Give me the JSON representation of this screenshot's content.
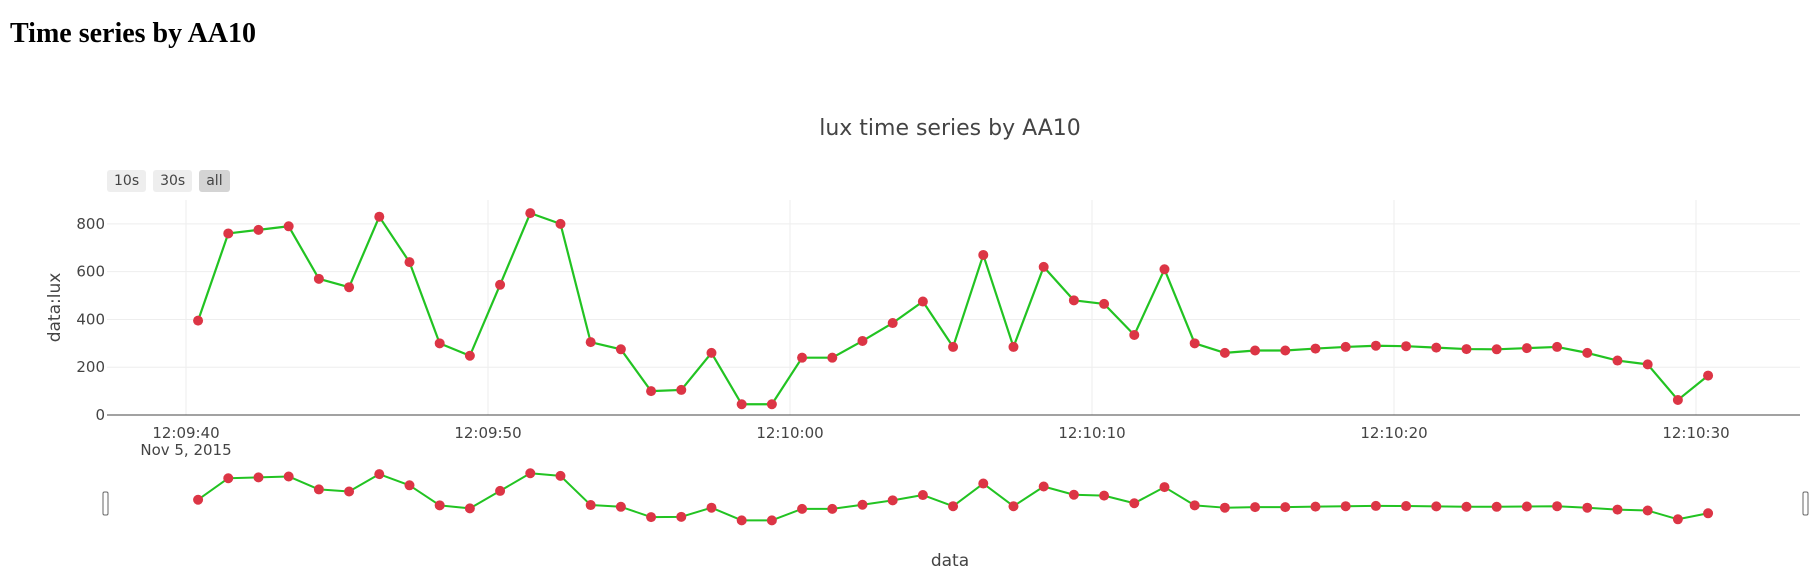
{
  "page": {
    "heading": "Time series by AA10"
  },
  "range_buttons": [
    {
      "label": "10s",
      "active": false
    },
    {
      "label": "30s",
      "active": false
    },
    {
      "label": "all",
      "active": true
    }
  ],
  "colors": {
    "line": "#22c322",
    "marker": "#dc3545",
    "grid": "#eeeeee",
    "axis": "#444444"
  },
  "chart_data": {
    "type": "line",
    "title": "lux time series by AA10",
    "xlabel": "data",
    "ylabel": "data:lux",
    "x_ticks": [
      "12:09:40",
      "12:09:50",
      "12:10:00",
      "12:10:10",
      "12:10:20",
      "12:10:30"
    ],
    "x_date_label": "Nov 5, 2015",
    "y_ticks": [
      0,
      200,
      400,
      600,
      800
    ],
    "ylim": [
      0,
      900
    ],
    "xlim": [
      "2015-11-05 12:09:40",
      "2015-11-05 12:10:33"
    ],
    "rangeslider": true,
    "grid": true,
    "series": [
      {
        "x": [
          "2015-11-05 12:09:40.4",
          "2015-11-05 12:09:41.4",
          "2015-11-05 12:09:42.4",
          "2015-11-05 12:09:43.4",
          "2015-11-05 12:09:44.4",
          "2015-11-05 12:09:45.4",
          "2015-11-05 12:09:46.4",
          "2015-11-05 12:09:47.4",
          "2015-11-05 12:09:48.4",
          "2015-11-05 12:09:49.4",
          "2015-11-05 12:09:50.4",
          "2015-11-05 12:09:51.4",
          "2015-11-05 12:09:52.4",
          "2015-11-05 12:09:53.4",
          "2015-11-05 12:09:54.4",
          "2015-11-05 12:09:55.4",
          "2015-11-05 12:09:56.4",
          "2015-11-05 12:09:57.4",
          "2015-11-05 12:09:58.4",
          "2015-11-05 12:09:59.4",
          "2015-11-05 12:10:00.4",
          "2015-11-05 12:10:01.4",
          "2015-11-05 12:10:02.4",
          "2015-11-05 12:10:03.4",
          "2015-11-05 12:10:04.4",
          "2015-11-05 12:10:05.4",
          "2015-11-05 12:10:06.4",
          "2015-11-05 12:10:07.4",
          "2015-11-05 12:10:08.4",
          "2015-11-05 12:10:09.4",
          "2015-11-05 12:10:10.4",
          "2015-11-05 12:10:11.4",
          "2015-11-05 12:10:12.4",
          "2015-11-05 12:10:13.4",
          "2015-11-05 12:10:14.4",
          "2015-11-05 12:10:15.4",
          "2015-11-05 12:10:16.4",
          "2015-11-05 12:10:17.4",
          "2015-11-05 12:10:18.4",
          "2015-11-05 12:10:19.4",
          "2015-11-05 12:10:20.4",
          "2015-11-05 12:10:21.4",
          "2015-11-05 12:10:22.4",
          "2015-11-05 12:10:23.4",
          "2015-11-05 12:10:24.4",
          "2015-11-05 12:10:25.4",
          "2015-11-05 12:10:26.4",
          "2015-11-05 12:10:27.4",
          "2015-11-05 12:10:28.4",
          "2015-11-05 12:10:29.4",
          "2015-11-05 12:10:30.4"
        ],
        "y": [
          395,
          760,
          775,
          790,
          570,
          535,
          830,
          640,
          300,
          248,
          545,
          845,
          800,
          305,
          275,
          100,
          105,
          260,
          45,
          45,
          240,
          240,
          310,
          385,
          475,
          285,
          670,
          285,
          620,
          480,
          465,
          335,
          610,
          300,
          260,
          270,
          270,
          278,
          285,
          290,
          288,
          282,
          276,
          275,
          280,
          285,
          260,
          228,
          212,
          63,
          165
        ]
      }
    ]
  }
}
